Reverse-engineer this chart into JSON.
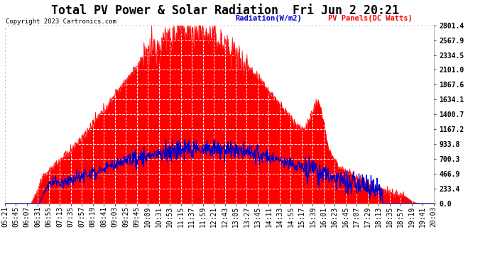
{
  "title": "Total PV Power & Solar Radiation  Fri Jun 2 20:21",
  "copyright": "Copyright 2023 Cartronics.com",
  "legend_radiation": "Radiation(W/m2)",
  "legend_pv": "PV Panels(DC Watts)",
  "pv_color": "#ff0000",
  "radiation_color": "#0000cc",
  "title_color": "#000000",
  "yticks": [
    0.0,
    233.4,
    466.9,
    700.3,
    933.8,
    1167.2,
    1400.7,
    1634.1,
    1867.6,
    2101.0,
    2334.5,
    2567.9,
    2801.4
  ],
  "ymax": 2801.4,
  "time_labels": [
    "05:21",
    "05:45",
    "06:07",
    "06:31",
    "06:55",
    "07:13",
    "07:35",
    "07:57",
    "08:19",
    "08:41",
    "09:03",
    "09:25",
    "09:45",
    "10:09",
    "10:31",
    "10:53",
    "11:15",
    "11:37",
    "11:59",
    "12:21",
    "12:43",
    "13:05",
    "13:27",
    "13:45",
    "14:11",
    "14:33",
    "14:55",
    "15:17",
    "15:39",
    "16:01",
    "16:23",
    "16:45",
    "17:07",
    "17:29",
    "18:13",
    "18:35",
    "18:57",
    "19:19",
    "19:41",
    "20:03"
  ],
  "outer_bg": "#ffffff",
  "plot_bg": "#ffffff",
  "title_fontsize": 13,
  "tick_fontsize": 7
}
